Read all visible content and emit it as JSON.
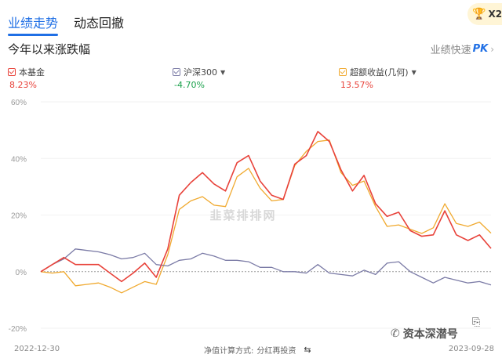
{
  "tabs": [
    {
      "label": "业绩走势",
      "active": true
    },
    {
      "label": "动态回撤",
      "active": false
    }
  ],
  "badge": {
    "text": "X2",
    "icon": "trophy-icon"
  },
  "section_title": "今年以来涨跌幅",
  "pk_link": {
    "label": "业绩快速",
    "mark": "PK"
  },
  "legend": [
    {
      "name": "本基金",
      "value": "8.23%",
      "color": "#e8423a",
      "value_color": "#e8423a",
      "has_dropdown": false
    },
    {
      "name": "沪深300",
      "value": "-4.70%",
      "color": "#7b7ba6",
      "value_color": "#1aa14b",
      "has_dropdown": true
    },
    {
      "name": "超额收益(几何)",
      "value": "13.57%",
      "color": "#f0a92e",
      "value_color": "#e8423a",
      "has_dropdown": true
    }
  ],
  "watermark": "韭菜排排网",
  "footer": {
    "start_date": "2022-12-30",
    "end_date": "2023-09-28",
    "method_label": "净值计算方式:",
    "method_value": "分红再投资"
  },
  "wechat_overlay": "资本深潜号",
  "chart_data": {
    "type": "line",
    "yticks": [
      "60%",
      "40%",
      "20%",
      "0%",
      "-20%"
    ],
    "ylim": [
      -20,
      60
    ],
    "series": [
      {
        "name": "本基金",
        "color": "#e8423a",
        "values": [
          0,
          2.5,
          5,
          2.5,
          2.5,
          2.5,
          -0.5,
          -3.5,
          -0.5,
          3,
          -2,
          8,
          27,
          31.5,
          35,
          31,
          28.5,
          38.5,
          41,
          32,
          27,
          25.5,
          38,
          41,
          49.5,
          46,
          36,
          28.5,
          34,
          24,
          19.5,
          21,
          14.5,
          12.5,
          13,
          21.5,
          13,
          11,
          13,
          8.2
        ]
      },
      {
        "name": "沪深300",
        "color": "#7b7ba6",
        "values": [
          0,
          2.5,
          4.5,
          8,
          7.5,
          7,
          6,
          4.5,
          5,
          6.5,
          2.5,
          2,
          4,
          4.5,
          6.5,
          5.5,
          4,
          4,
          3.5,
          1.5,
          1.5,
          0,
          0,
          -0.5,
          2.5,
          -0.5,
          -1,
          -1.5,
          0.5,
          -1,
          3,
          3.5,
          0,
          -2,
          -4,
          -2,
          -3,
          -4,
          -3.5,
          -4.7
        ]
      },
      {
        "name": "超额收益(几何)",
        "color": "#f0a92e",
        "values": [
          0,
          -0.5,
          0,
          -5,
          -4.5,
          -4,
          -5.5,
          -7.5,
          -5.5,
          -3.5,
          -4.5,
          6,
          22,
          25,
          26.5,
          23.5,
          23,
          33.5,
          36.5,
          29.5,
          25,
          25.5,
          37.5,
          42.5,
          46,
          46.5,
          35,
          30.5,
          32,
          23,
          16,
          16.5,
          15,
          13.5,
          15.5,
          24,
          17,
          16,
          17.5,
          13.6
        ]
      }
    ]
  }
}
